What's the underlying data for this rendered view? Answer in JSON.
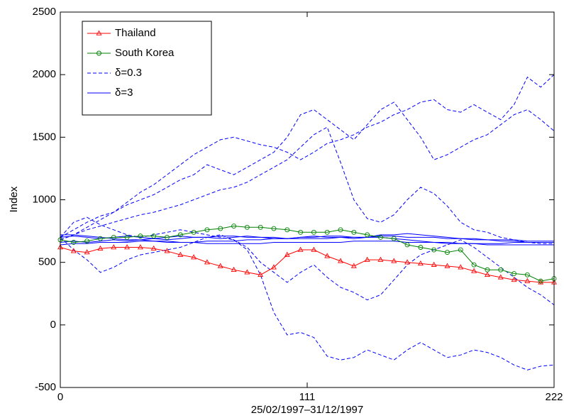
{
  "chart_data": {
    "type": "line",
    "xlabel": "25/02/1997–31/12/1997",
    "ylabel": "Index",
    "x": [
      0,
      6,
      12,
      18,
      24,
      30,
      36,
      42,
      48,
      54,
      60,
      66,
      72,
      78,
      84,
      90,
      96,
      102,
      108,
      114,
      120,
      126,
      132,
      138,
      144,
      150,
      156,
      162,
      168,
      174,
      180,
      186,
      192,
      198,
      204,
      210,
      216,
      222
    ],
    "xlim": [
      0,
      222
    ],
    "xticks": [
      0,
      111,
      222
    ],
    "ylim": [
      -500,
      2500
    ],
    "yticks": [
      -500,
      0,
      500,
      1000,
      1500,
      2000,
      2500
    ],
    "legend": "upper left",
    "series": [
      {
        "name": "Thailand",
        "color": "#ff0000",
        "marker": "triangle",
        "linestyle": "solid",
        "values": [
          620,
          590,
          580,
          610,
          620,
          620,
          620,
          610,
          590,
          560,
          540,
          500,
          470,
          440,
          420,
          400,
          460,
          560,
          600,
          600,
          550,
          510,
          470,
          520,
          520,
          510,
          500,
          490,
          480,
          470,
          460,
          430,
          400,
          380,
          360,
          350,
          340,
          340
        ]
      },
      {
        "name": "South Korea",
        "color": "#008000",
        "marker": "circle",
        "linestyle": "solid",
        "values": [
          680,
          660,
          670,
          690,
          700,
          700,
          710,
          710,
          700,
          720,
          740,
          760,
          770,
          790,
          780,
          780,
          770,
          760,
          740,
          740,
          740,
          760,
          740,
          720,
          700,
          690,
          640,
          620,
          600,
          580,
          600,
          480,
          440,
          440,
          410,
          400,
          350,
          370
        ]
      },
      {
        "name": "δ=0.3",
        "color": "#0000ff",
        "linestyle": "dashed",
        "lines": [
          [
            700,
            760,
            820,
            870,
            900,
            980,
            1060,
            1120,
            1200,
            1280,
            1360,
            1420,
            1480,
            1500,
            1470,
            1440,
            1420,
            1380,
            1320,
            1380,
            1450,
            1480,
            1520,
            1580,
            1620,
            1680,
            1720,
            1780,
            1800,
            1720,
            1700,
            1760,
            1700,
            1640,
            1760,
            1980,
            1900,
            2000
          ],
          [
            680,
            720,
            780,
            840,
            900,
            960,
            1000,
            1040,
            1100,
            1160,
            1200,
            1280,
            1240,
            1200,
            1260,
            1320,
            1380,
            1500,
            1680,
            1720,
            1640,
            1560,
            1480,
            1600,
            1720,
            1780,
            1640,
            1500,
            1320,
            1360,
            1420,
            1480,
            1520,
            1600,
            1680,
            1720,
            1640,
            1550
          ],
          [
            680,
            720,
            760,
            790,
            820,
            850,
            880,
            900,
            930,
            960,
            1000,
            1040,
            1080,
            1100,
            1140,
            1200,
            1260,
            1320,
            1420,
            1520,
            1580,
            1300,
            1000,
            850,
            820,
            880,
            1000,
            1100,
            1050,
            950,
            820,
            760,
            740,
            700,
            680,
            660,
            650,
            650
          ],
          [
            700,
            600,
            520,
            420,
            460,
            520,
            560,
            580,
            600,
            620,
            660,
            700,
            720,
            680,
            620,
            500,
            420,
            340,
            420,
            480,
            380,
            300,
            260,
            200,
            240,
            360,
            480,
            560,
            600,
            640,
            680,
            620,
            540,
            460,
            380,
            300,
            240,
            160
          ],
          [
            700,
            820,
            860,
            800,
            760,
            720,
            700,
            720,
            740,
            760,
            740,
            720,
            700,
            680,
            600,
            400,
            100,
            -80,
            -60,
            -100,
            -250,
            -280,
            -260,
            -200,
            -240,
            -280,
            -200,
            -140,
            -200,
            -260,
            -240,
            -200,
            -220,
            -260,
            -320,
            -360,
            -330,
            -320
          ]
        ]
      },
      {
        "name": "δ=3",
        "color": "#0000ff",
        "linestyle": "solid",
        "lines": [
          [
            700,
            710,
            700,
            690,
            700,
            710,
            700,
            690,
            700,
            710,
            700,
            700,
            690,
            700,
            710,
            700,
            700,
            690,
            700,
            710,
            700,
            700,
            690,
            700,
            700,
            690,
            680,
            670,
            660,
            660,
            650,
            650,
            640,
            640,
            640,
            640,
            640,
            640
          ],
          [
            660,
            670,
            660,
            670,
            680,
            670,
            680,
            690,
            680,
            690,
            700,
            700,
            710,
            710,
            700,
            700,
            690,
            690,
            700,
            700,
            710,
            710,
            700,
            700,
            720,
            720,
            730,
            720,
            710,
            700,
            690,
            680,
            680,
            670,
            670,
            660,
            660,
            660
          ],
          [
            640,
            650,
            650,
            660,
            660,
            660,
            670,
            670,
            660,
            660,
            660,
            670,
            670,
            670,
            680,
            680,
            690,
            690,
            690,
            690,
            690,
            700,
            700,
            700,
            710,
            710,
            700,
            700,
            700,
            690,
            690,
            690,
            680,
            680,
            680,
            670,
            670,
            670
          ],
          [
            720,
            720,
            710,
            700,
            690,
            680,
            680,
            670,
            670,
            660,
            660,
            650,
            650,
            650,
            650,
            650,
            660,
            660,
            660,
            660,
            660,
            660,
            670,
            670,
            670,
            670,
            660,
            660,
            660,
            650,
            650,
            650,
            650,
            650,
            660,
            660,
            660,
            660
          ]
        ]
      }
    ]
  }
}
